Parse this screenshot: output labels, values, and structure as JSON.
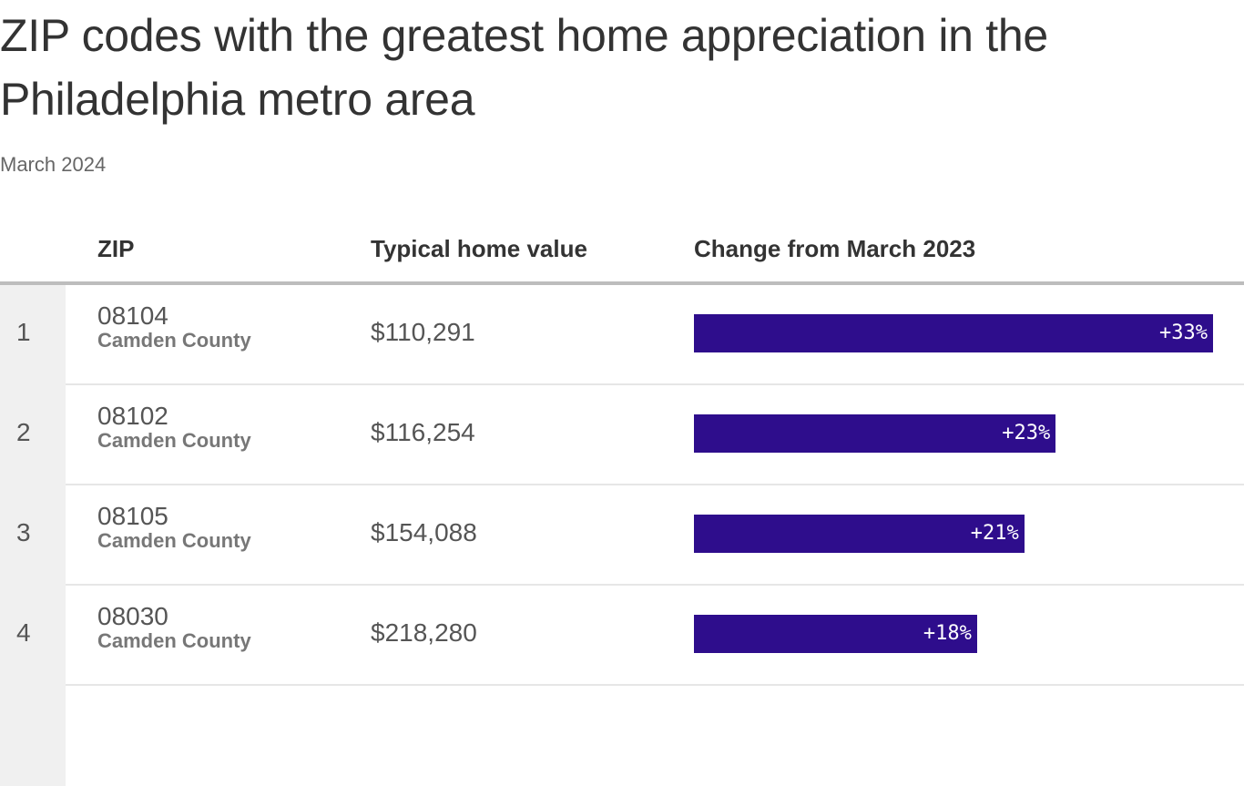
{
  "title": "ZIP codes with the greatest home appreciation in the Philadelphia metro area",
  "subtitle": "March 2024",
  "headers": {
    "zip": "ZIP",
    "value": "Typical home value",
    "change": "Change from March 2023"
  },
  "colors": {
    "bar": "#2e0d8c",
    "rank_bg": "#f0f0f0"
  },
  "chart_data": {
    "type": "bar",
    "orientation": "horizontal",
    "title": "ZIP codes with the greatest home appreciation in the Philadelphia metro area",
    "subtitle": "March 2024",
    "categories": [
      "08104",
      "08102",
      "08105",
      "08030"
    ],
    "values": [
      33,
      23,
      21,
      18
    ],
    "rows": [
      {
        "rank": "1",
        "zip": "08104",
        "county": "Camden County",
        "value": "$110,291",
        "change": 33,
        "change_label": "+33%"
      },
      {
        "rank": "2",
        "zip": "08102",
        "county": "Camden County",
        "value": "$116,254",
        "change": 23,
        "change_label": "+23%"
      },
      {
        "rank": "3",
        "zip": "08105",
        "county": "Camden County",
        "value": "$154,088",
        "change": 21,
        "change_label": "+21%"
      },
      {
        "rank": "4",
        "zip": "08030",
        "county": "Camden County",
        "value": "$218,280",
        "change": 18,
        "change_label": "+18%"
      }
    ]
  }
}
